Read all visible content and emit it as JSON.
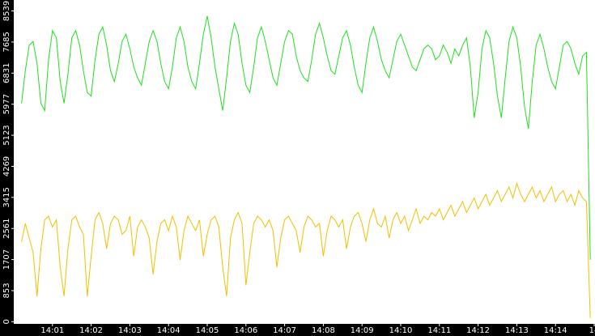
{
  "chart_data": {
    "type": "line",
    "x": [
      0.2,
      0.3,
      0.4,
      0.5,
      0.6,
      0.7,
      0.8,
      0.9,
      1.0,
      1.1,
      1.2,
      1.3,
      1.4,
      1.5,
      1.6,
      1.7,
      1.8,
      1.9,
      2.0,
      2.1,
      2.2,
      2.3,
      2.4,
      2.5,
      2.6,
      2.7,
      2.8,
      2.9,
      3.0,
      3.1,
      3.2,
      3.3,
      3.4,
      3.5,
      3.6,
      3.7,
      3.8,
      3.9,
      4.0,
      4.1,
      4.2,
      4.3,
      4.4,
      4.5,
      4.6,
      4.7,
      4.8,
      4.9,
      5.0,
      5.1,
      5.2,
      5.3,
      5.4,
      5.5,
      5.6,
      5.7,
      5.8,
      5.9,
      6.0,
      6.1,
      6.2,
      6.3,
      6.4,
      6.5,
      6.6,
      6.7,
      6.8,
      6.9,
      7.0,
      7.1,
      7.2,
      7.3,
      7.4,
      7.5,
      7.6,
      7.7,
      7.8,
      7.9,
      8.0,
      8.1,
      8.2,
      8.3,
      8.4,
      8.5,
      8.6,
      8.7,
      8.8,
      8.9,
      9.0,
      9.1,
      9.2,
      9.3,
      9.4,
      9.5,
      9.6,
      9.7,
      9.8,
      9.9,
      10.0,
      10.1,
      10.2,
      10.3,
      10.4,
      10.5,
      10.6,
      10.7,
      10.8,
      10.9,
      11.0,
      11.1,
      11.2,
      11.3,
      11.4,
      11.5,
      11.6,
      11.7,
      11.8,
      11.9,
      12.0,
      12.1,
      12.2,
      12.3,
      12.4,
      12.5,
      12.6,
      12.7,
      12.8,
      12.9,
      13.0,
      13.1,
      13.2,
      13.3,
      13.4,
      13.5,
      13.6,
      13.7,
      13.8,
      13.9,
      14.0,
      14.1,
      14.2,
      14.3,
      14.4,
      14.5,
      14.6,
      14.7,
      14.8,
      14.9
    ],
    "series": [
      {
        "color": "#1ee01e",
        "values": [
          6000,
          6900,
          7600,
          7700,
          7100,
          6000,
          5800,
          7200,
          8000,
          7800,
          6600,
          6000,
          6800,
          7800,
          8000,
          7600,
          6900,
          6300,
          6200,
          7200,
          7900,
          8100,
          7600,
          6900,
          6600,
          7100,
          7700,
          7900,
          7500,
          7000,
          6700,
          6500,
          7100,
          7700,
          8000,
          7700,
          7100,
          6600,
          6400,
          7000,
          7800,
          8100,
          7700,
          7000,
          6600,
          6400,
          7100,
          7900,
          8400,
          7800,
          7000,
          6400,
          5800,
          6700,
          7700,
          8200,
          7900,
          7100,
          6500,
          6300,
          7000,
          7800,
          8100,
          7700,
          7200,
          6700,
          6500,
          7100,
          7700,
          8000,
          7900,
          7300,
          6900,
          6700,
          6600,
          7200,
          7900,
          8200,
          7800,
          7300,
          6900,
          6800,
          7300,
          7800,
          8000,
          7600,
          7000,
          6500,
          6300,
          7100,
          7800,
          8100,
          7700,
          7200,
          6900,
          6700,
          7200,
          7700,
          7900,
          7600,
          7300,
          7000,
          6900,
          7200,
          7500,
          7600,
          7500,
          7200,
          7300,
          7600,
          7400,
          7100,
          7500,
          7300,
          7600,
          7800,
          7000,
          5600,
          6300,
          7500,
          8000,
          7800,
          7100,
          6200,
          5600,
          6700,
          7700,
          8100,
          7800,
          7000,
          5900,
          5300,
          6600,
          7600,
          7900,
          7500,
          7000,
          6600,
          6400,
          7000,
          7600,
          7700,
          7500,
          7100,
          6800,
          7300,
          7400,
          1700
        ]
      },
      {
        "color": "#f0c000",
        "values": [
          2200,
          2700,
          2300,
          1900,
          700,
          2000,
          2800,
          2900,
          2600,
          2800,
          1500,
          700,
          2000,
          2800,
          2900,
          2600,
          2400,
          700,
          1800,
          2800,
          3000,
          2700,
          2000,
          2700,
          2900,
          2800,
          2400,
          2500,
          2900,
          1800,
          2600,
          2800,
          2600,
          2300,
          1300,
          2200,
          2700,
          2800,
          2500,
          2900,
          2600,
          1700,
          2500,
          2900,
          2700,
          2500,
          2800,
          1800,
          2400,
          2800,
          2900,
          2600,
          1500,
          700,
          2300,
          2800,
          3000,
          2700,
          1000,
          1900,
          2700,
          2900,
          2800,
          2600,
          2800,
          2500,
          1500,
          2300,
          2800,
          2900,
          2700,
          2500,
          1900,
          2600,
          2900,
          2800,
          2600,
          2700,
          1800,
          2500,
          2900,
          2800,
          2600,
          2800,
          2000,
          2600,
          2900,
          3000,
          2700,
          2200,
          2800,
          3100,
          2700,
          2600,
          2900,
          2300,
          2800,
          3000,
          2700,
          2900,
          2500,
          2800,
          3100,
          2700,
          2900,
          2800,
          3000,
          2900,
          3100,
          2800,
          3000,
          3200,
          2900,
          3100,
          3300,
          3000,
          3200,
          3400,
          3100,
          3300,
          3500,
          3200,
          3400,
          3600,
          3300,
          3500,
          3700,
          3400,
          3800,
          3500,
          3300,
          3500,
          3700,
          3400,
          3600,
          3300,
          3500,
          3700,
          3300,
          3500,
          3600,
          3300,
          3500,
          3200,
          3600,
          3400,
          3300,
          100
        ]
      }
    ],
    "xlim": [
      0,
      15
    ],
    "xticks": [
      {
        "value": 1,
        "label": "14:01"
      },
      {
        "value": 2,
        "label": "14:02"
      },
      {
        "value": 3,
        "label": "14:03"
      },
      {
        "value": 4,
        "label": "14:04"
      },
      {
        "value": 5,
        "label": "14:05"
      },
      {
        "value": 6,
        "label": "14:06"
      },
      {
        "value": 7,
        "label": "14:07"
      },
      {
        "value": 8,
        "label": "14:08"
      },
      {
        "value": 9,
        "label": "14:09"
      },
      {
        "value": 10,
        "label": "14:10"
      },
      {
        "value": 11,
        "label": "14:11"
      },
      {
        "value": 12,
        "label": "14:12"
      },
      {
        "value": 13,
        "label": "14:13"
      },
      {
        "value": 14,
        "label": "14:14"
      },
      {
        "value": 15,
        "label": "14"
      }
    ],
    "ylim": [
      -60,
      8840
    ],
    "yticks": [
      0,
      853,
      1707,
      2561,
      3415,
      4269,
      5123,
      5977,
      6831,
      7685,
      8539
    ]
  }
}
